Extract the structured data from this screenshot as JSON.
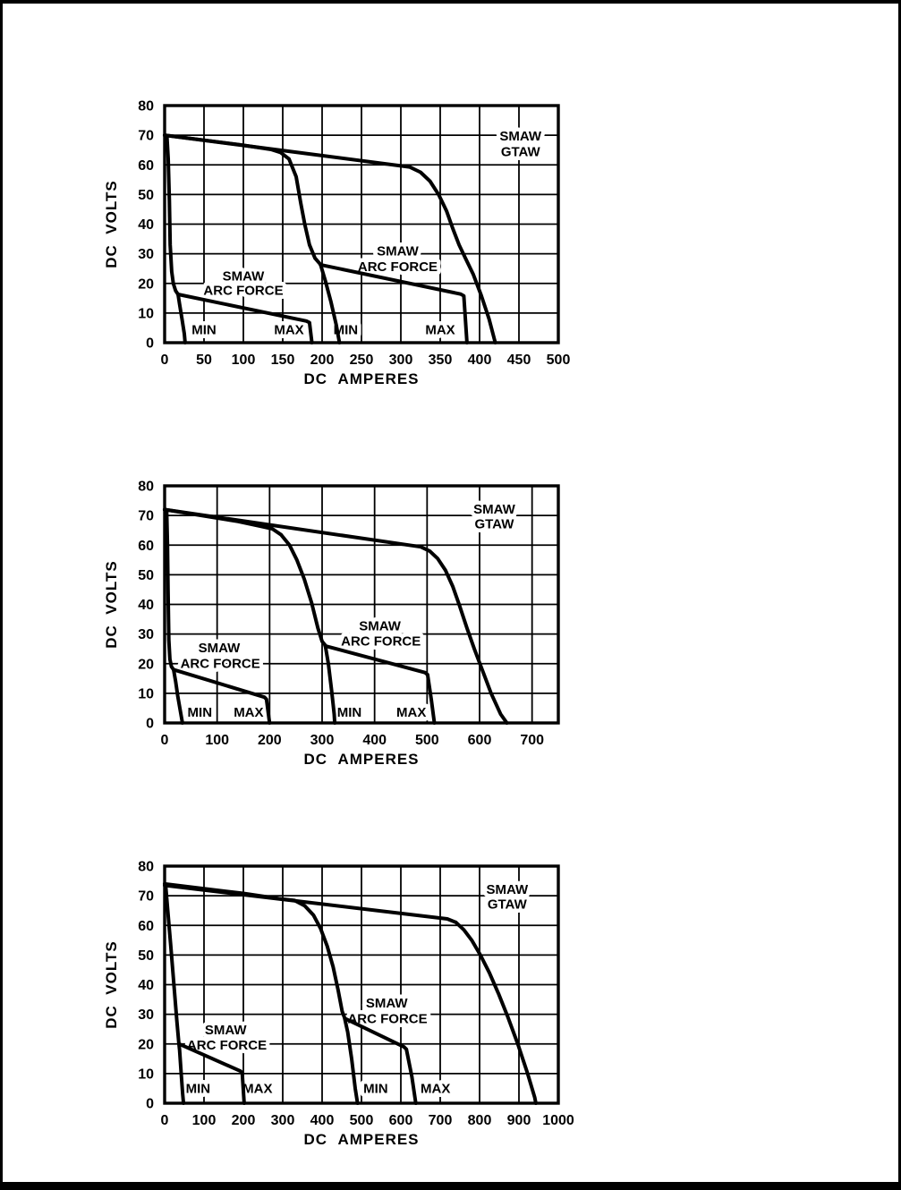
{
  "page": {
    "background": "#ffffff",
    "frame_color": "#000000"
  },
  "colors": {
    "line": "#000000",
    "halo": "#ffffff"
  },
  "chart_data": [
    {
      "type": "line",
      "name": "volt-ampere-curve-chart-500a",
      "xlabel": "DC  AMPERES",
      "ylabel": "DC  VOLTS",
      "xlim": [
        0,
        500
      ],
      "ylim": [
        0,
        80
      ],
      "x_ticks": [
        0,
        50,
        100,
        150,
        200,
        250,
        300,
        350,
        400,
        450,
        500
      ],
      "y_ticks": [
        0,
        10,
        20,
        30,
        40,
        50,
        60,
        70,
        80
      ],
      "grid": true,
      "series": [
        {
          "name": "range-1-min-curve",
          "points": [
            [
              0,
              70
            ],
            [
              3,
              69.5
            ],
            [
              4.5,
              62
            ],
            [
              6,
              48
            ],
            [
              7,
              33
            ],
            [
              9,
              24
            ],
            [
              11,
              20
            ],
            [
              14,
              17.5
            ],
            [
              17,
              16.3
            ],
            [
              19,
              13
            ],
            [
              22,
              8
            ],
            [
              25,
              3
            ],
            [
              26,
              0
            ]
          ]
        },
        {
          "name": "range-1-max-arc-force-curve",
          "points": [
            [
              17,
              16.3
            ],
            [
              180,
              7.3
            ],
            [
              184,
              6.8
            ],
            [
              187,
              0
            ]
          ]
        },
        {
          "name": "range-2-min-curve",
          "points": [
            [
              0,
              70
            ],
            [
              95,
              66.8
            ],
            [
              135,
              65.2
            ],
            [
              147,
              64.2
            ],
            [
              158,
              62
            ],
            [
              167,
              56
            ],
            [
              173,
              47
            ],
            [
              178,
              40
            ],
            [
              184,
              33
            ],
            [
              191,
              28.5
            ],
            [
              198,
              26.4
            ],
            [
              204,
              21
            ],
            [
              211,
              14
            ],
            [
              218,
              6
            ],
            [
              222,
              0
            ]
          ]
        },
        {
          "name": "range-2-max-arc-force-curve",
          "points": [
            [
              198,
              26.3
            ],
            [
              376,
              16.4
            ],
            [
              380,
              15.8
            ],
            [
              384,
              0
            ]
          ]
        },
        {
          "name": "smaw-gtaw-max-curve",
          "points": [
            [
              0,
              70
            ],
            [
              311,
              59.3
            ],
            [
              325,
              57.5
            ],
            [
              337,
              54.5
            ],
            [
              348,
              50
            ],
            [
              358,
              44.5
            ],
            [
              366,
              38.5
            ],
            [
              374,
              33
            ],
            [
              382,
              28.5
            ],
            [
              392,
              23
            ],
            [
              402,
              16
            ],
            [
              412,
              8
            ],
            [
              419,
              1
            ],
            [
              420,
              0
            ]
          ]
        }
      ],
      "annotations": [
        {
          "name": "range-1-min-label",
          "text": "MIN",
          "x": 50,
          "y": 4.4
        },
        {
          "name": "range-1-max-label",
          "text": "MAX",
          "x": 158,
          "y": 4.4
        },
        {
          "name": "range-2-min-label",
          "text": "MIN",
          "x": 230,
          "y": 4.4
        },
        {
          "name": "range-2-max-label",
          "text": "MAX",
          "x": 350,
          "y": 4.4
        },
        {
          "name": "range-1-arc-force-label-line-1",
          "text": "SMAW",
          "x": 100,
          "y": 22.6
        },
        {
          "name": "range-1-arc-force-label-line-2",
          "text": "ARC FORCE",
          "x": 100,
          "y": 17.8
        },
        {
          "name": "range-2-arc-force-label-line-1",
          "text": "SMAW",
          "x": 296,
          "y": 31.0
        },
        {
          "name": "range-2-arc-force-label-line-2",
          "text": "ARC FORCE",
          "x": 296,
          "y": 25.8
        },
        {
          "name": "smaw-gtaw-label-line-1",
          "text": "SMAW",
          "x": 452,
          "y": 69.8
        },
        {
          "name": "smaw-gtaw-label-line-2",
          "text": "GTAW",
          "x": 452,
          "y": 64.6
        }
      ]
    },
    {
      "type": "line",
      "name": "volt-ampere-curve-chart-750a",
      "xlabel": "DC  AMPERES",
      "ylabel": "DC  VOLTS",
      "xlim": [
        0,
        750
      ],
      "ylim": [
        0,
        80
      ],
      "x_ticks": [
        0,
        100,
        200,
        300,
        400,
        500,
        600,
        700
      ],
      "y_ticks": [
        0,
        10,
        20,
        30,
        40,
        50,
        60,
        70,
        80
      ],
      "grid": true,
      "series": [
        {
          "name": "range-1-min-curve",
          "points": [
            [
              0,
              72
            ],
            [
              4,
              71.5
            ],
            [
              5.5,
              60
            ],
            [
              6.5,
              45
            ],
            [
              8,
              28
            ],
            [
              10,
              21.5
            ],
            [
              13,
              19
            ],
            [
              17,
              18
            ],
            [
              21,
              14
            ],
            [
              25,
              9
            ],
            [
              30,
              4
            ],
            [
              34,
              0
            ]
          ]
        },
        {
          "name": "range-1-max-arc-force-curve",
          "points": [
            [
              17,
              18
            ],
            [
              190,
              8.7
            ],
            [
              194,
              8
            ],
            [
              200,
              0
            ]
          ]
        },
        {
          "name": "range-2-min-curve",
          "points": [
            [
              0,
              72
            ],
            [
              140,
              68
            ],
            [
              185,
              66.3
            ],
            [
              205,
              65.5
            ],
            [
              222,
              63.5
            ],
            [
              238,
              60
            ],
            [
              252,
              55
            ],
            [
              266,
              48.5
            ],
            [
              280,
              40.5
            ],
            [
              292,
              32
            ],
            [
              300,
              27.5
            ],
            [
              306,
              26.2
            ],
            [
              312,
              20
            ],
            [
              318,
              11
            ],
            [
              323,
              3
            ],
            [
              324,
              0
            ]
          ]
        },
        {
          "name": "range-2-max-arc-force-curve",
          "points": [
            [
              306,
              26
            ],
            [
              496,
              17
            ],
            [
              501,
              16.3
            ],
            [
              508,
              8
            ],
            [
              514,
              0
            ]
          ]
        },
        {
          "name": "smaw-gtaw-max-curve",
          "points": [
            [
              0,
              72
            ],
            [
              488,
              59.4
            ],
            [
              505,
              58
            ],
            [
              520,
              55.5
            ],
            [
              535,
              51.5
            ],
            [
              549,
              46
            ],
            [
              562,
              39.5
            ],
            [
              576,
              32
            ],
            [
              590,
              25
            ],
            [
              605,
              18
            ],
            [
              622,
              10
            ],
            [
              640,
              3
            ],
            [
              652,
              0
            ]
          ]
        }
      ],
      "annotations": [
        {
          "name": "range-1-min-label",
          "text": "MIN",
          "x": 67,
          "y": 3.7
        },
        {
          "name": "range-1-max-label",
          "text": "MAX",
          "x": 160,
          "y": 3.7
        },
        {
          "name": "range-2-min-label",
          "text": "MIN",
          "x": 352,
          "y": 3.7
        },
        {
          "name": "range-2-max-label",
          "text": "MAX",
          "x": 470,
          "y": 3.7
        },
        {
          "name": "range-1-arc-force-label-line-1",
          "text": "SMAW",
          "x": 104,
          "y": 25.4
        },
        {
          "name": "range-1-arc-force-label-line-2",
          "text": "ARC FORCE",
          "x": 106,
          "y": 20.2
        },
        {
          "name": "range-2-arc-force-label-line-1",
          "text": "SMAW",
          "x": 410,
          "y": 32.8
        },
        {
          "name": "range-2-arc-force-label-line-2",
          "text": "ARC FORCE",
          "x": 412,
          "y": 27.7
        },
        {
          "name": "smaw-gtaw-label-line-1",
          "text": "SMAW",
          "x": 628,
          "y": 72.2
        },
        {
          "name": "smaw-gtaw-label-line-2",
          "text": "GTAW",
          "x": 628,
          "y": 67.3
        }
      ]
    },
    {
      "type": "line",
      "name": "volt-ampere-curve-chart-1000a",
      "xlabel": "DC  AMPERES",
      "ylabel": "DC  VOLTS",
      "xlim": [
        0,
        1000
      ],
      "ylim": [
        0,
        80
      ],
      "x_ticks": [
        0,
        100,
        200,
        300,
        400,
        500,
        600,
        700,
        800,
        900,
        1000
      ],
      "y_ticks": [
        0,
        10,
        20,
        30,
        40,
        50,
        60,
        70,
        80
      ],
      "grid": true,
      "series": [
        {
          "name": "range-1-min-curve",
          "points": [
            [
              0,
              74
            ],
            [
              3,
              73
            ],
            [
              8,
              65
            ],
            [
              15,
              54
            ],
            [
              23,
              41
            ],
            [
              31,
              28
            ],
            [
              36,
              20.5
            ],
            [
              38,
              18
            ],
            [
              42,
              10
            ],
            [
              46,
              3
            ],
            [
              48,
              0
            ]
          ]
        },
        {
          "name": "range-1-max-arc-force-curve",
          "points": [
            [
              37,
              20
            ],
            [
              193,
              10.8
            ],
            [
              197,
              10.2
            ],
            [
              202,
              0
            ]
          ]
        },
        {
          "name": "range-2-min-curve",
          "points": [
            [
              0,
              74
            ],
            [
              200,
              70.8
            ],
            [
              290,
              69
            ],
            [
              330,
              68.4
            ],
            [
              356,
              66.6
            ],
            [
              378,
              63.5
            ],
            [
              396,
              59
            ],
            [
              413,
              53
            ],
            [
              428,
              46
            ],
            [
              441,
              38
            ],
            [
              451,
              31
            ],
            [
              457,
              28.8
            ],
            [
              465,
              24
            ],
            [
              475,
              15
            ],
            [
              484,
              5
            ],
            [
              490,
              0
            ]
          ]
        },
        {
          "name": "range-2-max-arc-force-curve",
          "points": [
            [
              458,
              28.6
            ],
            [
              608,
              19
            ],
            [
              614,
              18.2
            ],
            [
              628,
              9
            ],
            [
              638,
              0
            ]
          ]
        },
        {
          "name": "smaw-gtaw-max-curve",
          "points": [
            [
              0,
              73.5
            ],
            [
              718,
              62.2
            ],
            [
              740,
              61
            ],
            [
              760,
              58.5
            ],
            [
              780,
              55
            ],
            [
              802,
              50
            ],
            [
              825,
              44
            ],
            [
              848,
              37
            ],
            [
              872,
              29
            ],
            [
              897,
              20
            ],
            [
              922,
              10
            ],
            [
              940,
              2
            ],
            [
              943,
              0
            ]
          ]
        }
      ],
      "annotations": [
        {
          "name": "range-1-min-label",
          "text": "MIN",
          "x": 85,
          "y": 5
        },
        {
          "name": "range-1-max-label",
          "text": "MAX",
          "x": 236,
          "y": 5
        },
        {
          "name": "range-2-min-label",
          "text": "MIN",
          "x": 536,
          "y": 5
        },
        {
          "name": "range-2-max-label",
          "text": "MAX",
          "x": 688,
          "y": 5
        },
        {
          "name": "range-1-arc-force-label-line-1",
          "text": "SMAW",
          "x": 155,
          "y": 24.8
        },
        {
          "name": "range-1-arc-force-label-line-2",
          "text": "ARC FORCE",
          "x": 158,
          "y": 19.7
        },
        {
          "name": "range-2-arc-force-label-line-1",
          "text": "SMAW",
          "x": 564,
          "y": 33.9
        },
        {
          "name": "range-2-arc-force-label-line-2",
          "text": "ARC FORCE",
          "x": 566,
          "y": 28.6
        },
        {
          "name": "smaw-gtaw-label-line-1",
          "text": "SMAW",
          "x": 870,
          "y": 72.2
        },
        {
          "name": "smaw-gtaw-label-line-2",
          "text": "GTAW",
          "x": 870,
          "y": 67.2
        }
      ]
    }
  ]
}
